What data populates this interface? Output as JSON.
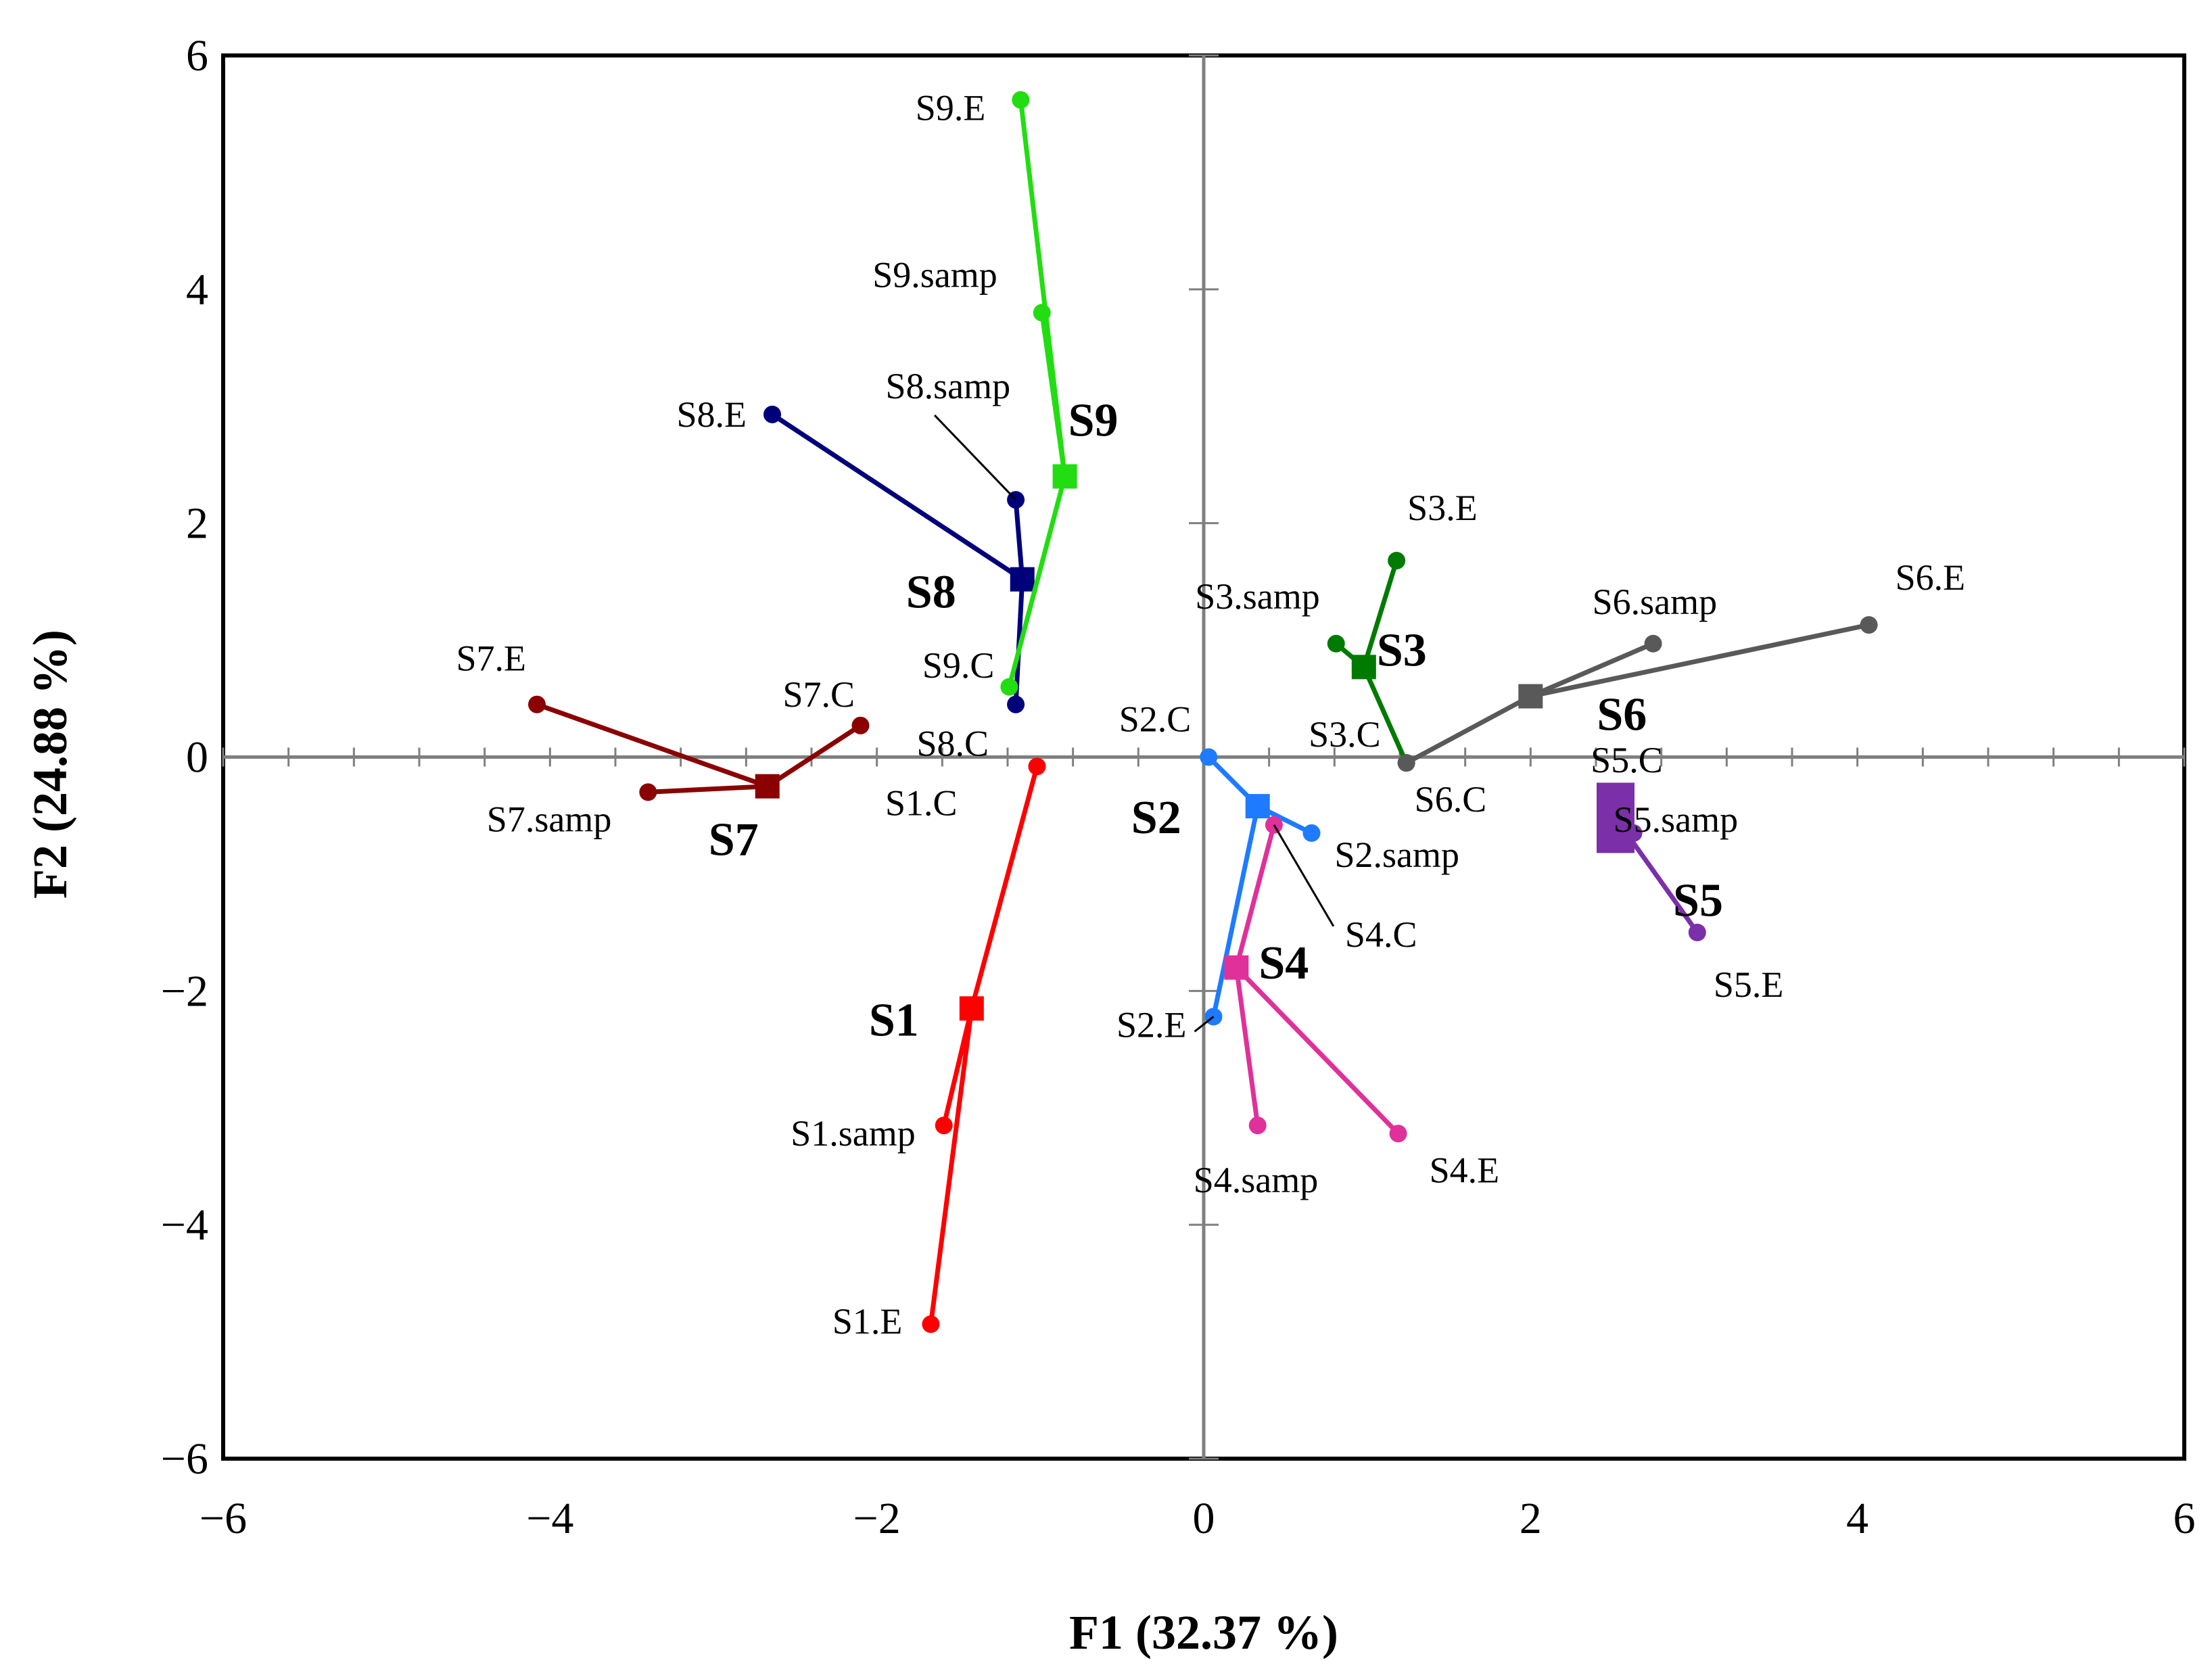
{
  "chart_data": {
    "type": "scatter",
    "title": "",
    "xlabel": "F1 (32.37 %)",
    "ylabel": "F2 (24.88 %)",
    "xlim": [
      -6,
      6
    ],
    "ylim": [
      -6,
      6
    ],
    "xticks": [
      "−6",
      "−4",
      "−2",
      "0",
      "2",
      "4",
      "6"
    ],
    "yticks": [
      "6",
      "4",
      "2",
      "0",
      "−2",
      "−4",
      "−6"
    ],
    "grid": false,
    "groups": [
      {
        "name": "S1",
        "color": "#ff0000",
        "centroid": [
          -1.42,
          -2.15
        ],
        "points": [
          {
            "label": "S1.C",
            "x": -1.02,
            "y": -0.08
          },
          {
            "label": "S1.samp",
            "x": -1.59,
            "y": -3.15
          },
          {
            "label": "S1.E",
            "x": -1.67,
            "y": -4.85
          }
        ]
      },
      {
        "name": "S2",
        "color": "#1e7bff",
        "centroid": [
          0.33,
          -0.42
        ],
        "points": [
          {
            "label": "S2.C",
            "x": 0.03,
            "y": 0.0
          },
          {
            "label": "S2.samp",
            "x": 0.66,
            "y": -0.65
          },
          {
            "label": "S2.E",
            "x": 0.06,
            "y": -2.22
          }
        ]
      },
      {
        "name": "S3",
        "color": "#007a00",
        "centroid": [
          0.98,
          0.77
        ],
        "points": [
          {
            "label": "S3.E",
            "x": 1.18,
            "y": 1.68
          },
          {
            "label": "S3.samp",
            "x": 0.81,
            "y": 0.97
          },
          {
            "label": "S3.C",
            "x": 1.24,
            "y": -0.05
          }
        ]
      },
      {
        "name": "S4",
        "color": "#e0309a",
        "centroid": [
          0.2,
          -1.8
        ],
        "points": [
          {
            "label": "S4.C",
            "x": 0.43,
            "y": -0.58
          },
          {
            "label": "S4.samp",
            "x": 0.33,
            "y": -3.15
          },
          {
            "label": "S4.E",
            "x": 1.19,
            "y": -3.22
          }
        ]
      },
      {
        "name": "S5",
        "color": "#7b2fa8",
        "centroid": [
          2.52,
          -0.52
        ],
        "points": [
          {
            "label": "S5.C",
            "x": 2.5,
            "y": -0.42
          },
          {
            "label": "S5.samp",
            "x": 2.63,
            "y": -0.65
          },
          {
            "label": "S5.E",
            "x": 3.02,
            "y": -1.5
          }
        ]
      },
      {
        "name": "S6",
        "color": "#595959",
        "centroid": [
          2.0,
          0.52
        ],
        "points": [
          {
            "label": "S6.C",
            "x": 1.24,
            "y": -0.05
          },
          {
            "label": "S6.samp",
            "x": 2.75,
            "y": 0.97
          },
          {
            "label": "S6.E",
            "x": 4.07,
            "y": 1.13
          }
        ]
      },
      {
        "name": "S7",
        "color": "#8b0000",
        "centroid": [
          -2.67,
          -0.25
        ],
        "points": [
          {
            "label": "S7.E",
            "x": -4.08,
            "y": 0.45
          },
          {
            "label": "S7.C",
            "x": -2.1,
            "y": 0.27
          },
          {
            "label": "S7.samp",
            "x": -3.4,
            "y": -0.3
          }
        ]
      },
      {
        "name": "S8",
        "color": "#00007a",
        "centroid": [
          -1.11,
          1.52
        ],
        "points": [
          {
            "label": "S8.E",
            "x": -2.64,
            "y": 2.93
          },
          {
            "label": "S8.samp",
            "x": -1.15,
            "y": 2.2
          },
          {
            "label": "S8.C",
            "x": -1.15,
            "y": 0.45
          }
        ]
      },
      {
        "name": "S9",
        "color": "#22dd11",
        "centroid": [
          -0.85,
          2.4
        ],
        "points": [
          {
            "label": "S9.E",
            "x": -1.12,
            "y": 5.62
          },
          {
            "label": "S9.samp",
            "x": -0.99,
            "y": 3.8
          },
          {
            "label": "S9.C",
            "x": -1.19,
            "y": 0.6
          }
        ]
      }
    ]
  }
}
